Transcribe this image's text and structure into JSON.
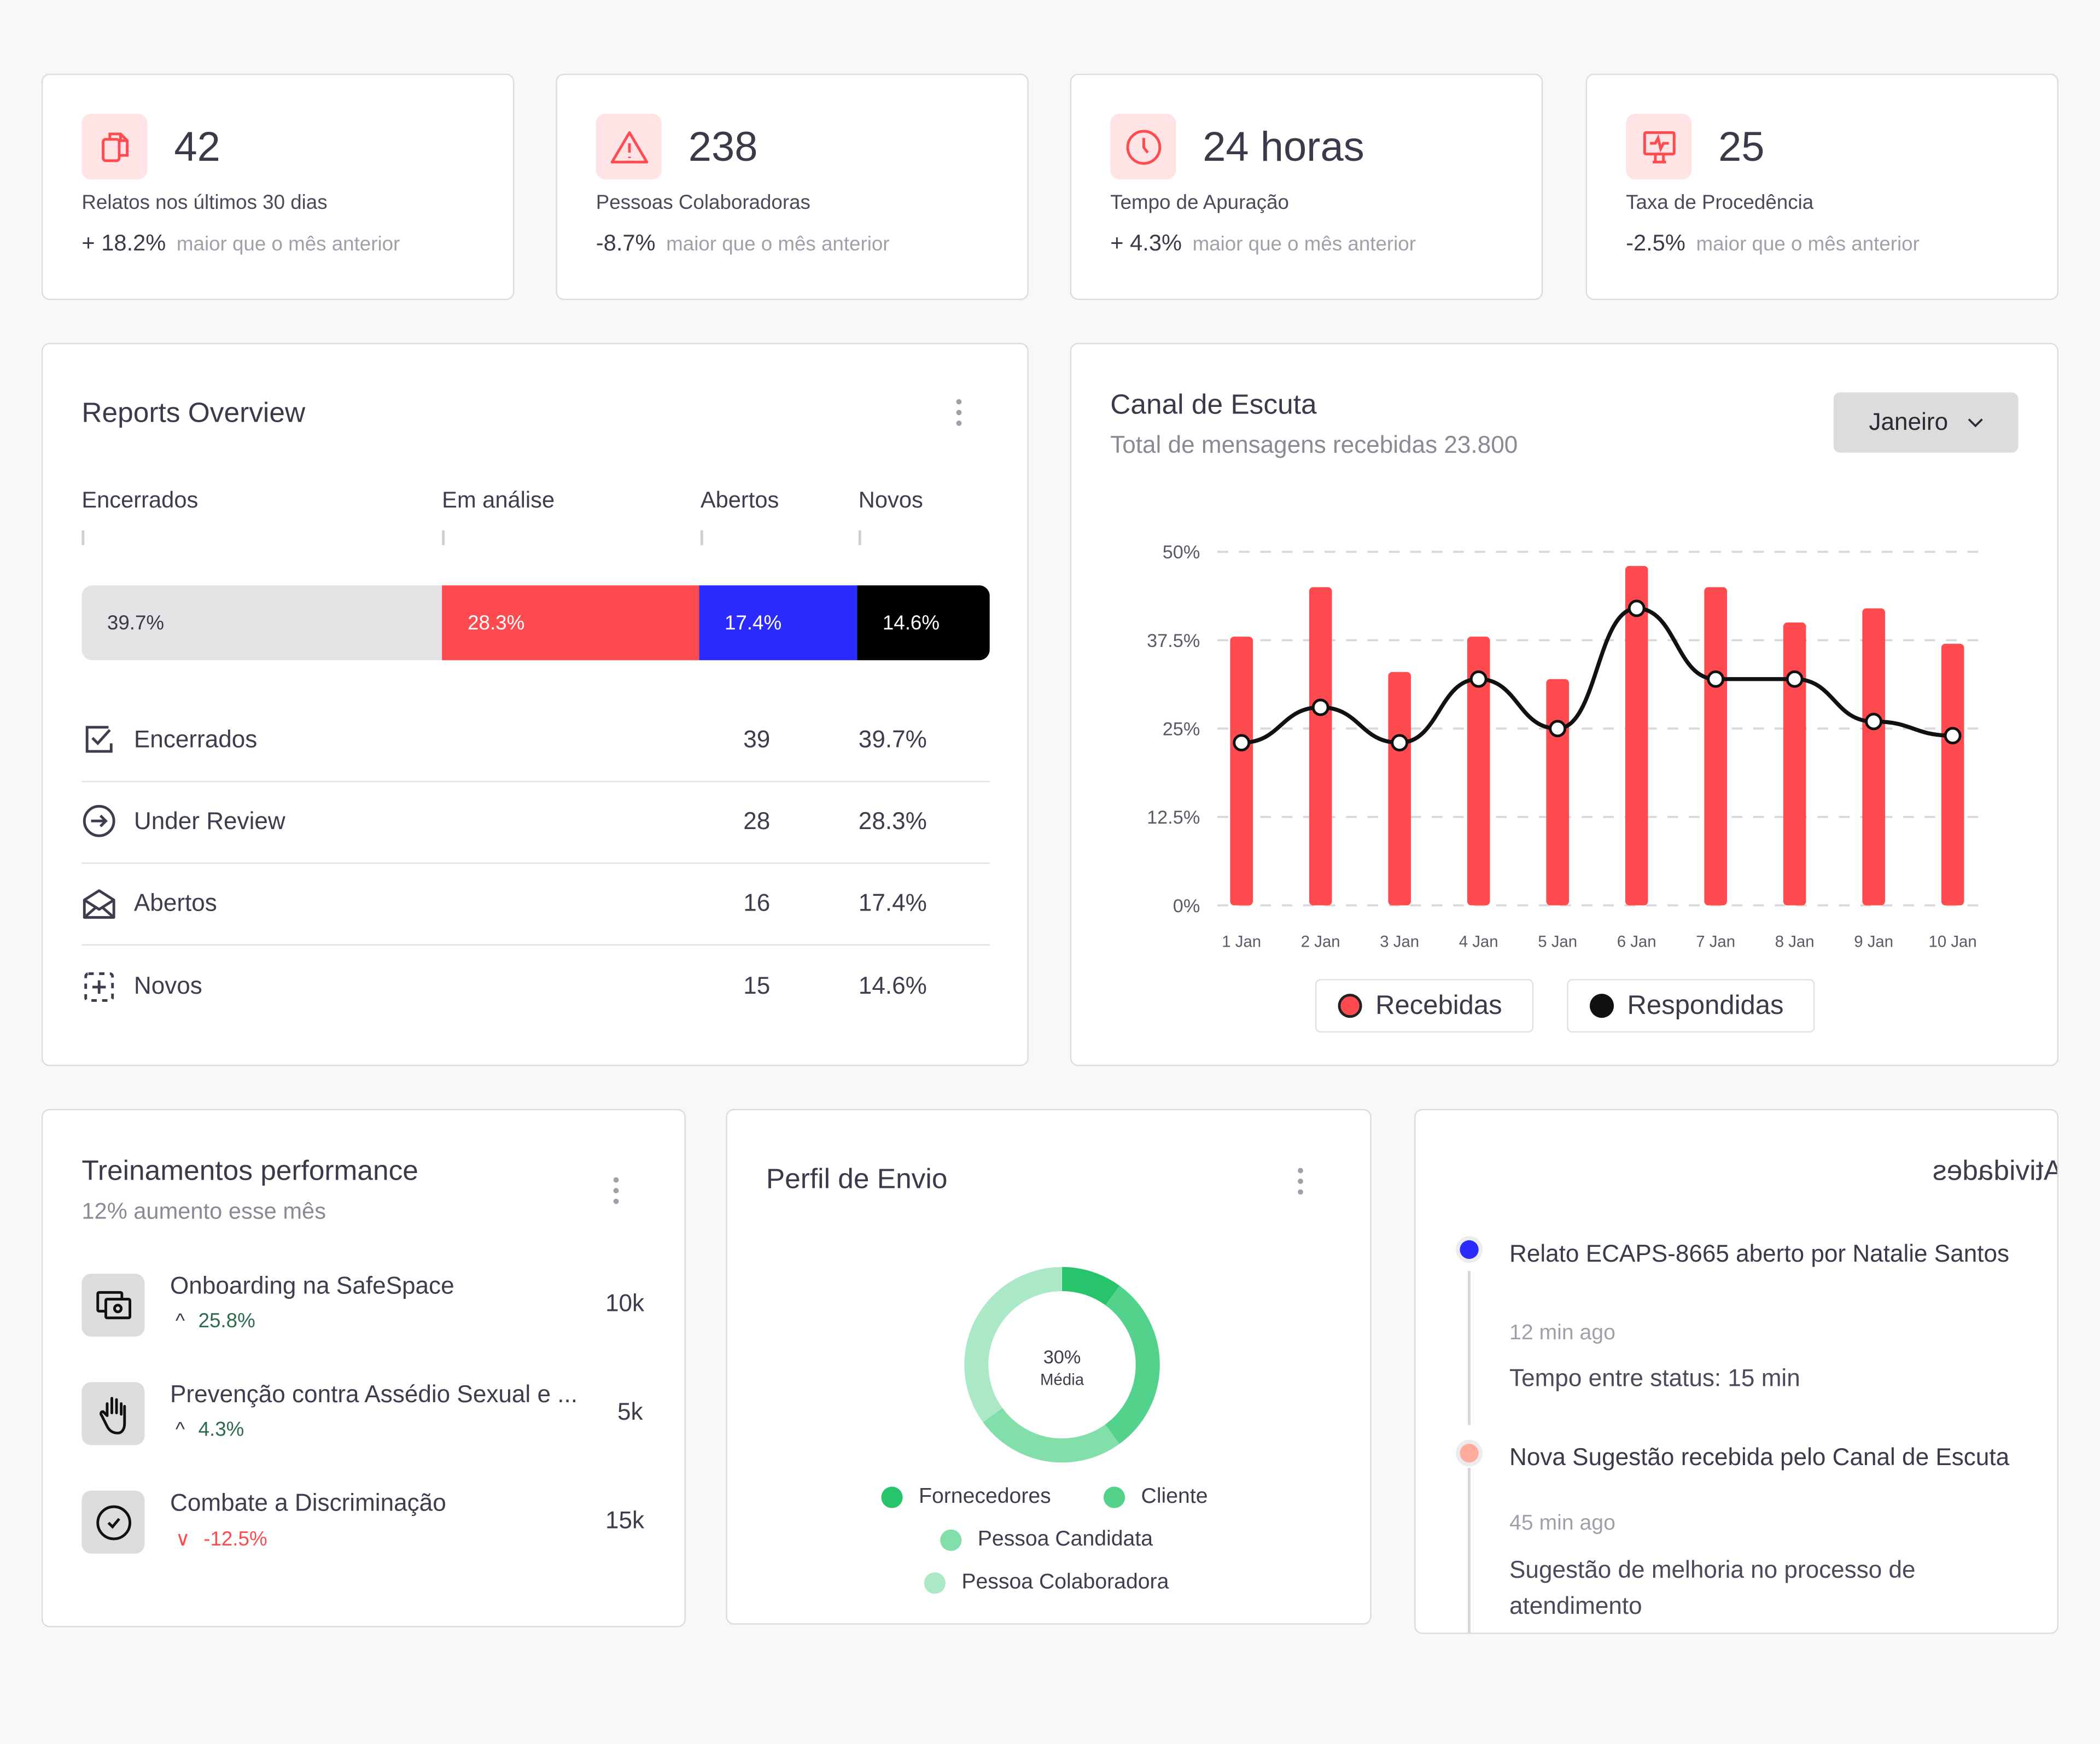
{
  "stats": [
    {
      "icon": "copy-icon",
      "value": "42",
      "label": "Relatos nos últimos 30 dias",
      "change": "+ 18.2%",
      "change_note": "maior que o mês anterior"
    },
    {
      "icon": "warning-icon",
      "value": "238",
      "label": "Pessoas Colaboradoras",
      "change": "-8.7%",
      "change_note": "maior que o mês anterior"
    },
    {
      "icon": "clock-icon",
      "value": "24 horas",
      "label": "Tempo de Apuração",
      "change": "+ 4.3%",
      "change_note": "maior que o mês anterior"
    },
    {
      "icon": "monitor-pulse-icon",
      "value": "25",
      "label": "Taxa de Procedência",
      "change": "-2.5%",
      "change_note": "maior que o mês anterior"
    }
  ],
  "reports": {
    "title": "Reports Overview",
    "columns": [
      "Encerrados",
      "Em análise",
      "Abertos",
      "Novos"
    ],
    "bar": [
      {
        "label": "39.7%",
        "value": 39.7,
        "color": "#e4e4e7",
        "text_color": "#3a3a4a"
      },
      {
        "label": "28.3%",
        "value": 28.3,
        "color": "#ff4b4f",
        "text_color": "#ffffff"
      },
      {
        "label": "17.4%",
        "value": 17.4,
        "color": "#2b2bff",
        "text_color": "#ffffff"
      },
      {
        "label": "14.6%",
        "value": 14.6,
        "color": "#000000",
        "text_color": "#ffffff"
      }
    ],
    "rows": [
      {
        "icon": "checkbox-icon",
        "label": "Encerrados",
        "count": "39",
        "pct": "39.7%"
      },
      {
        "icon": "arrow-circle-right-icon",
        "label": "Under Review",
        "count": "28",
        "pct": "28.3%"
      },
      {
        "icon": "envelope-open-icon",
        "label": "Abertos",
        "count": "16",
        "pct": "17.4%"
      },
      {
        "icon": "dashed-plus-icon",
        "label": "Novos",
        "count": "15",
        "pct": "14.6%"
      }
    ]
  },
  "canal": {
    "title": "Canal de Escuta",
    "subtitle": "Total de mensagens recebidas 23.800",
    "dropdown": "Janeiro",
    "legend": [
      {
        "label": "Recebidas",
        "color": "#ff4b4f"
      },
      {
        "label": "Respondidas",
        "color": "#111111"
      }
    ]
  },
  "chart_data": {
    "type": "bar+line",
    "categories": [
      "1 Jan",
      "2 Jan",
      "3 Jan",
      "4 Jan",
      "5 Jan",
      "6 Jan",
      "7 Jan",
      "8 Jan",
      "9 Jan",
      "10 Jan"
    ],
    "series": [
      {
        "name": "Recebidas",
        "type": "bar",
        "color": "#ff4b4f",
        "values": [
          38,
          45,
          33,
          38,
          32,
          48,
          45,
          40,
          42,
          37
        ]
      },
      {
        "name": "Respondidas",
        "type": "line",
        "color": "#111111",
        "values": [
          23,
          28,
          23,
          32,
          25,
          42,
          32,
          32,
          26,
          24
        ]
      }
    ],
    "yticks": [
      "0%",
      "12.5%",
      "25%",
      "37.5%",
      "50%"
    ],
    "ylim": [
      0,
      50
    ],
    "grid": true,
    "legend_position": "bottom"
  },
  "training": {
    "title": "Treinamentos performance",
    "subtitle": "12% aumento esse mês",
    "items": [
      {
        "icon": "video-card-icon",
        "name": "Onboarding na SafeSpace",
        "trend": "up",
        "change": "25.8%",
        "value": "10k"
      },
      {
        "icon": "hand-icon",
        "name": "Prevenção contra Assédio Sexual e ...",
        "trend": "up",
        "change": "4.3%",
        "value": "5k"
      },
      {
        "icon": "check-circle-icon",
        "name": "Combate a Discriminação",
        "trend": "down",
        "change": "-12.5%",
        "value": "15k"
      }
    ]
  },
  "perfil": {
    "title": "Perfil de Envio",
    "center_value": "30%",
    "center_label": "Média",
    "segments": [
      {
        "label": "Fornecedores",
        "value": 10,
        "color": "#27c46c"
      },
      {
        "label": "Cliente",
        "value": 30,
        "color": "#52d28b"
      },
      {
        "label": "Pessoa Candidata",
        "value": 25,
        "color": "#82dfaa"
      },
      {
        "label": "Pessoa Colaboradora",
        "value": 35,
        "color": "#abe9c6"
      }
    ]
  },
  "activities": {
    "title": "Atividades",
    "items": [
      {
        "color": "#2b2bff",
        "title": "Relato ECAPS-8665 aberto por Natalie Santos",
        "time": "12 min ago",
        "detail": "Tempo entre status: 15 min"
      },
      {
        "color": "#ffab9c",
        "title": "Nova Sugestão recebida pelo Canal de Escuta",
        "time": "45 min ago",
        "detail": "Sugestão de melhoria no processo de atendimento"
      }
    ]
  }
}
